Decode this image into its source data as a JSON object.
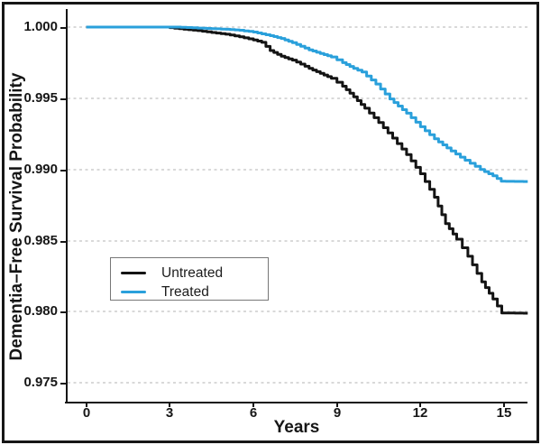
{
  "figure": {
    "background_color": "#ffffff",
    "frame_color": "#161616",
    "gridline_color": "#d9d9d9"
  },
  "chart_data": {
    "type": "line",
    "subtype": "kaplan-meier-step-survival",
    "title": "",
    "xlabel": "Years",
    "ylabel": "Dementia–Free Survival Probability",
    "xlim": [
      0,
      15.9
    ],
    "ylim": [
      0.9735,
      1.0005
    ],
    "grid": "horizontal dashed",
    "x_ticks": [
      0,
      3,
      6,
      9,
      12,
      15
    ],
    "x_tick_labels": [
      "0",
      "3",
      "6",
      "9",
      "12",
      "15"
    ],
    "y_ticks": [
      1.0,
      0.995,
      0.99,
      0.985,
      0.98,
      0.975
    ],
    "y_tick_labels": [
      "1.000",
      "0.995",
      "0.990",
      "0.985",
      "0.980",
      "0.975"
    ],
    "legend": {
      "position": "inside lower-left",
      "border_color": "#777777"
    },
    "series": [
      {
        "name": "Untreated",
        "color": "#141414",
        "final_value": 0.98,
        "points": [
          [
            0,
            1.0
          ],
          [
            2.8,
            1.0
          ],
          [
            3.0,
            0.99996
          ],
          [
            3.5,
            0.99985
          ],
          [
            4.0,
            0.99975
          ],
          [
            4.5,
            0.99962
          ],
          [
            5.0,
            0.9995
          ],
          [
            5.5,
            0.99932
          ],
          [
            6.0,
            0.9991
          ],
          [
            6.3,
            0.99893
          ],
          [
            6.6,
            0.99835
          ],
          [
            7.0,
            0.99795
          ],
          [
            7.4,
            0.99768
          ],
          [
            7.7,
            0.9974
          ],
          [
            8.0,
            0.9971
          ],
          [
            8.4,
            0.99675
          ],
          [
            8.8,
            0.9964
          ],
          [
            9.2,
            0.99585
          ],
          [
            9.6,
            0.9951
          ],
          [
            10.0,
            0.9943
          ],
          [
            10.5,
            0.9933
          ],
          [
            11.0,
            0.9922
          ],
          [
            11.5,
            0.99105
          ],
          [
            12.0,
            0.9897
          ],
          [
            12.5,
            0.98805
          ],
          [
            12.9,
            0.9862
          ],
          [
            13.3,
            0.9851
          ],
          [
            13.7,
            0.9839
          ],
          [
            14.2,
            0.9821
          ],
          [
            14.6,
            0.9809
          ],
          [
            14.92,
            0.97992
          ],
          [
            15.85,
            0.9799
          ]
        ]
      },
      {
        "name": "Treated",
        "color": "#2AA0DB",
        "final_value": 0.989,
        "points": [
          [
            0,
            1.0
          ],
          [
            3.2,
            1.0
          ],
          [
            3.6,
            0.99997
          ],
          [
            4.0,
            0.99993
          ],
          [
            4.5,
            0.99989
          ],
          [
            5.0,
            0.99985
          ],
          [
            5.5,
            0.99978
          ],
          [
            6.0,
            0.99965
          ],
          [
            6.6,
            0.9994
          ],
          [
            7.0,
            0.9992
          ],
          [
            7.4,
            0.9989
          ],
          [
            7.7,
            0.99865
          ],
          [
            8.0,
            0.9984
          ],
          [
            8.4,
            0.99815
          ],
          [
            8.8,
            0.9979
          ],
          [
            9.2,
            0.9975
          ],
          [
            9.6,
            0.9971
          ],
          [
            9.9,
            0.99685
          ],
          [
            10.4,
            0.996
          ],
          [
            10.9,
            0.99495
          ],
          [
            11.5,
            0.99395
          ],
          [
            12.0,
            0.993
          ],
          [
            12.5,
            0.99215
          ],
          [
            13.1,
            0.9913
          ],
          [
            13.6,
            0.99065
          ],
          [
            14.15,
            0.99
          ],
          [
            14.6,
            0.98955
          ],
          [
            14.9,
            0.98917
          ],
          [
            15.85,
            0.98915
          ]
        ]
      }
    ]
  }
}
